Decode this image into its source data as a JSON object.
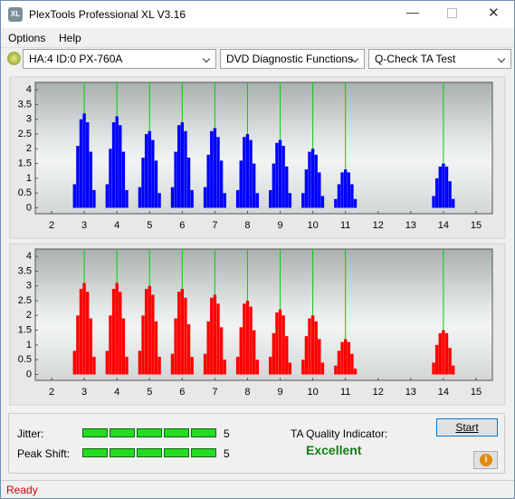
{
  "window": {
    "title": "PlexTools Professional XL V3.16"
  },
  "menu": [
    "Options",
    "Help"
  ],
  "toolbar": {
    "device": "HA:4 ID:0  PX-760A",
    "function": "DVD Diagnostic Functions",
    "test": "Q-Check TA Test"
  },
  "chart_data": [
    {
      "type": "bar",
      "color": "#0000ff",
      "reference_color": "#00d000",
      "xlim": [
        1.5,
        15.5
      ],
      "ylim": [
        -0.2,
        4.25
      ],
      "xticks": [
        2,
        3,
        4,
        5,
        6,
        7,
        8,
        9,
        10,
        11,
        12,
        13,
        14,
        15
      ],
      "yticks": [
        0,
        0.5,
        1,
        1.5,
        2,
        2.5,
        3,
        3.5,
        4
      ],
      "reference_lines": [
        3,
        4,
        5,
        6,
        7,
        8,
        9,
        10,
        11,
        14
      ],
      "x": [
        2.7,
        2.8,
        2.9,
        3,
        3.1,
        3.2,
        3.3,
        3.7,
        3.8,
        3.9,
        4,
        4.1,
        4.2,
        4.3,
        4.7,
        4.8,
        4.9,
        5,
        5.1,
        5.2,
        5.3,
        5.7,
        5.8,
        5.9,
        6,
        6.1,
        6.2,
        6.3,
        6.7,
        6.8,
        6.9,
        7,
        7.1,
        7.2,
        7.3,
        7.7,
        7.8,
        7.9,
        8,
        8.1,
        8.2,
        8.3,
        8.7,
        8.8,
        8.9,
        9,
        9.1,
        9.2,
        9.3,
        9.7,
        9.8,
        9.9,
        10,
        10.1,
        10.2,
        10.3,
        10.7,
        10.8,
        10.9,
        11,
        11.1,
        11.2,
        11.3,
        13.7,
        13.8,
        13.9,
        14,
        14.1,
        14.2,
        14.3
      ],
      "values": [
        0.8,
        2.1,
        3.0,
        3.2,
        2.9,
        1.9,
        0.6,
        0.8,
        2.0,
        2.9,
        3.1,
        2.8,
        1.9,
        0.6,
        0.7,
        1.7,
        2.5,
        2.6,
        2.3,
        1.6,
        0.5,
        0.7,
        1.9,
        2.8,
        2.9,
        2.6,
        1.7,
        0.6,
        0.7,
        1.8,
        2.6,
        2.7,
        2.4,
        1.6,
        0.5,
        0.6,
        1.6,
        2.4,
        2.5,
        2.3,
        1.5,
        0.5,
        0.6,
        1.5,
        2.2,
        2.3,
        2.1,
        1.4,
        0.5,
        0.5,
        1.3,
        1.9,
        2.0,
        1.8,
        1.2,
        0.4,
        0.3,
        0.8,
        1.2,
        1.3,
        1.2,
        0.8,
        0.3,
        0.4,
        1.0,
        1.4,
        1.5,
        1.4,
        0.9,
        0.3
      ]
    },
    {
      "type": "bar",
      "color": "#ff0000",
      "reference_color": "#00d000",
      "xlim": [
        1.5,
        15.5
      ],
      "ylim": [
        -0.2,
        4.25
      ],
      "xticks": [
        2,
        3,
        4,
        5,
        6,
        7,
        8,
        9,
        10,
        11,
        12,
        13,
        14,
        15
      ],
      "yticks": [
        0,
        0.5,
        1,
        1.5,
        2,
        2.5,
        3,
        3.5,
        4
      ],
      "reference_lines": [
        3,
        4,
        5,
        6,
        7,
        8,
        9,
        10,
        11,
        14
      ],
      "x": [
        2.7,
        2.8,
        2.9,
        3,
        3.1,
        3.2,
        3.3,
        3.7,
        3.8,
        3.9,
        4,
        4.1,
        4.2,
        4.3,
        4.7,
        4.8,
        4.9,
        5,
        5.1,
        5.2,
        5.3,
        5.7,
        5.8,
        5.9,
        6,
        6.1,
        6.2,
        6.3,
        6.7,
        6.8,
        6.9,
        7,
        7.1,
        7.2,
        7.3,
        7.7,
        7.8,
        7.9,
        8,
        8.1,
        8.2,
        8.3,
        8.7,
        8.8,
        8.9,
        9,
        9.1,
        9.2,
        9.3,
        9.7,
        9.8,
        9.9,
        10,
        10.1,
        10.2,
        10.3,
        10.7,
        10.8,
        10.9,
        11,
        11.1,
        11.2,
        11.3,
        13.7,
        13.8,
        13.9,
        14,
        14.1,
        14.2,
        14.3
      ],
      "values": [
        0.8,
        2.0,
        2.9,
        3.1,
        2.8,
        1.9,
        0.6,
        0.8,
        2.0,
        2.9,
        3.1,
        2.8,
        1.9,
        0.6,
        0.8,
        2.0,
        2.9,
        3.0,
        2.7,
        1.8,
        0.6,
        0.7,
        1.9,
        2.8,
        2.9,
        2.6,
        1.7,
        0.6,
        0.7,
        1.8,
        2.6,
        2.7,
        2.4,
        1.6,
        0.5,
        0.6,
        1.6,
        2.4,
        2.5,
        2.3,
        1.5,
        0.5,
        0.6,
        1.4,
        2.1,
        2.2,
        2.0,
        1.3,
        0.4,
        0.5,
        1.3,
        1.9,
        2.0,
        1.8,
        1.2,
        0.4,
        0.3,
        0.8,
        1.1,
        1.2,
        1.1,
        0.7,
        0.2,
        0.4,
        1.0,
        1.4,
        1.5,
        1.4,
        0.9,
        0.3
      ]
    }
  ],
  "results": {
    "jitter_label": "Jitter:",
    "jitter": 5,
    "peak_shift_label": "Peak Shift:",
    "peak_shift": 5,
    "quality_label": "TA Quality Indicator:",
    "quality": "Excellent",
    "start": "Start"
  },
  "status": "Ready"
}
